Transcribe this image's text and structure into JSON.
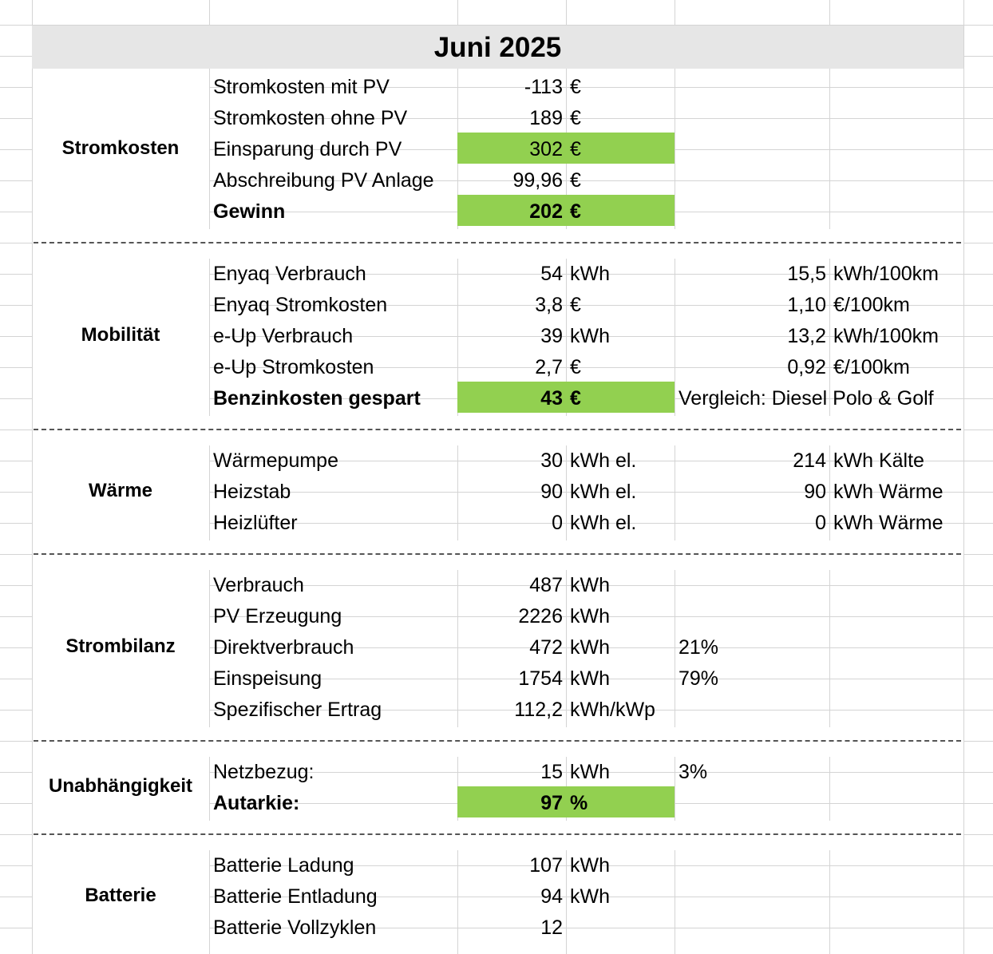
{
  "title": "Juni 2025",
  "separator": "-------------------------------------------------------------------------------------------------------------------------------------------",
  "colors": {
    "highlight": "#92d050",
    "title_band": "#e6e6e6",
    "gridline": "#d4d4d4"
  },
  "sections": [
    {
      "name": "Stromkosten",
      "rows": [
        {
          "label": "Stromkosten mit PV",
          "value": "-113",
          "unit": "€"
        },
        {
          "label": "Stromkosten ohne PV",
          "value": "189",
          "unit": "€"
        },
        {
          "label": "Einsparung durch PV",
          "value": "302",
          "unit": "€",
          "highlight": true
        },
        {
          "label": "Abschreibung PV Anlage",
          "value": "99,96",
          "unit": "€"
        },
        {
          "label": "Gewinn",
          "value": "202",
          "unit": "€",
          "highlight": true,
          "bold": true
        }
      ]
    },
    {
      "name": "Mobilität",
      "rows": [
        {
          "label": "Enyaq Verbrauch",
          "value": "54",
          "unit": "kWh",
          "extra_value": "15,5",
          "extra_unit": "kWh/100km"
        },
        {
          "label": "Enyaq Stromkosten",
          "value": "3,8",
          "unit": "€",
          "extra_value": "1,10",
          "extra_unit": "€/100km"
        },
        {
          "label": "e-Up Verbrauch",
          "value": "39",
          "unit": "kWh",
          "extra_value": "13,2",
          "extra_unit": "kWh/100km"
        },
        {
          "label": "e-Up Stromkosten",
          "value": "2,7",
          "unit": "€",
          "extra_value": "0,92",
          "extra_unit": "€/100km"
        },
        {
          "label": "Benzinkosten gespart",
          "value": "43",
          "unit": "€",
          "highlight": true,
          "bold": true,
          "note": "Vergleich: Diesel Polo & Golf"
        }
      ]
    },
    {
      "name": "Wärme",
      "rows": [
        {
          "label": "Wärmepumpe",
          "value": "30",
          "unit": "kWh el.",
          "extra_value": "214",
          "extra_unit": "kWh Kälte"
        },
        {
          "label": "Heizstab",
          "value": "90",
          "unit": "kWh el.",
          "extra_value": "90",
          "extra_unit": "kWh Wärme"
        },
        {
          "label": "Heizlüfter",
          "value": "0",
          "unit": "kWh el.",
          "extra_value": "0",
          "extra_unit": "kWh Wärme"
        }
      ]
    },
    {
      "name": "Strombilanz",
      "rows": [
        {
          "label": "Verbrauch",
          "value": "487",
          "unit": "kWh"
        },
        {
          "label": "PV Erzeugung",
          "value": "2226",
          "unit": "kWh"
        },
        {
          "label": "Direktverbrauch",
          "value": "472",
          "unit": "kWh",
          "pct": "21%"
        },
        {
          "label": "Einspeisung",
          "value": "1754",
          "unit": "kWh",
          "pct": "79%"
        },
        {
          "label": "Spezifischer Ertrag",
          "value": "112,2",
          "unit": "kWh/kWp"
        }
      ]
    },
    {
      "name": "Unabhängigkeit",
      "rows": [
        {
          "label": "Netzbezug:",
          "value": "15",
          "unit": "kWh",
          "pct": "3%"
        },
        {
          "label": "Autarkie:",
          "value": "97",
          "unit": "%",
          "highlight": true,
          "bold": true
        }
      ]
    },
    {
      "name": "Batterie",
      "rows": [
        {
          "label": "Batterie Ladung",
          "value": "107",
          "unit": "kWh"
        },
        {
          "label": "Batterie Entladung",
          "value": "94",
          "unit": "kWh"
        },
        {
          "label": "Batterie Vollzyklen",
          "value": "12",
          "unit": ""
        }
      ]
    }
  ]
}
